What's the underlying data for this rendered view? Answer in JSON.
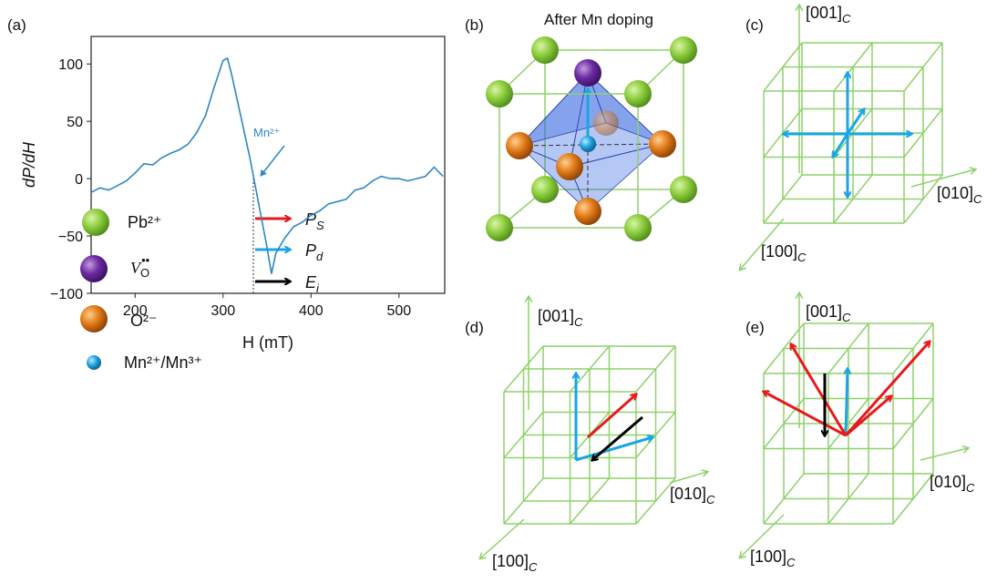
{
  "chart_data": {
    "type": "line",
    "panel_label": "(a)",
    "x_label": "H (mT)",
    "y_label": "dP/dH",
    "annotation": "Mn²⁺",
    "x": [
      150,
      160,
      170,
      180,
      190,
      200,
      210,
      220,
      230,
      240,
      250,
      260,
      270,
      280,
      290,
      300,
      305,
      310,
      320,
      330,
      335,
      340,
      350,
      355,
      360,
      370,
      380,
      390,
      400,
      410,
      420,
      430,
      440,
      450,
      460,
      470,
      480,
      490,
      500,
      510,
      520,
      530,
      540,
      550
    ],
    "values": [
      -12,
      -8,
      -10,
      -6,
      -2,
      5,
      13,
      12,
      18,
      22,
      25,
      30,
      40,
      55,
      80,
      103,
      105,
      90,
      55,
      20,
      0,
      -20,
      -60,
      -83,
      -65,
      -52,
      -42,
      -38,
      -32,
      -28,
      -22,
      -20,
      -18,
      -10,
      -8,
      -2,
      2,
      0,
      0,
      -2,
      0,
      2,
      10,
      2
    ],
    "color": "#2f86c4",
    "xlim": [
      150,
      552
    ],
    "ylim": [
      -100,
      124
    ],
    "xticks": [
      200,
      300,
      400,
      500
    ],
    "yticks": [
      {
        "value": -100,
        "label": "−100"
      },
      {
        "value": -50,
        "label": "−50"
      },
      0,
      50,
      100
    ]
  },
  "panels": [
    {
      "label": "(b)",
      "title": "After Mn doping"
    },
    {
      "label": "(c)",
      "axes": [
        {
          "text": "[001]",
          "sub": "C"
        },
        {
          "text": "[010]",
          "sub": "C"
        },
        {
          "text": "[100]",
          "sub": "C"
        }
      ]
    },
    {
      "label": "(d)",
      "axes": [
        {
          "text": "[001]",
          "sub": "C"
        },
        {
          "text": "[010]",
          "sub": "C"
        },
        {
          "text": "[100]",
          "sub": "C"
        }
      ]
    },
    {
      "label": "(e)",
      "axes": [
        {
          "text": "[001]",
          "sub": "C"
        },
        {
          "text": "[010]",
          "sub": "C"
        },
        {
          "text": "[100]",
          "sub": "C"
        }
      ]
    }
  ],
  "legend": {
    "atoms": [
      {
        "text": "Pb²⁺"
      },
      {
        "text": "V",
        "sub": "O",
        "sup": "••"
      },
      {
        "text": "O²⁻"
      },
      {
        "text": "Mn²⁺/Mn³⁺"
      }
    ],
    "arrows": [
      {
        "text": "P",
        "sub": "S"
      },
      {
        "text": "P",
        "sub": "d"
      },
      {
        "text": "E",
        "sub": "i"
      }
    ]
  }
}
